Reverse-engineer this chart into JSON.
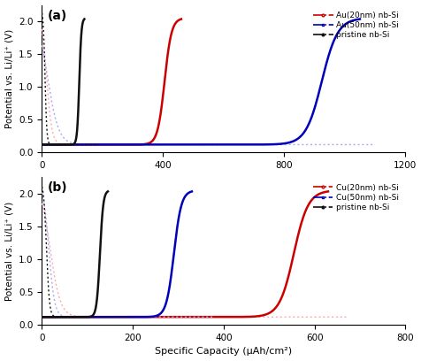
{
  "fig_title_a": "(a)",
  "fig_title_b": "(b)",
  "xlabel": "Specific Capacity (μAh/cm²)",
  "ylabel": "Potential vs. Li/Li⁺ (V)",
  "xlim_a": [
    0,
    1200
  ],
  "xlim_b": [
    0,
    800
  ],
  "ylim": [
    0,
    2.25
  ],
  "yticks": [
    0.0,
    0.5,
    1.0,
    1.5,
    2.0
  ],
  "xticks_a": [
    0,
    400,
    800,
    1200
  ],
  "xticks_b": [
    0,
    200,
    400,
    600,
    800
  ],
  "legend_a": [
    "Au(20nm) nb-Si",
    "Au(50nm) nb-Si",
    "pristine nb-Si"
  ],
  "legend_b": [
    "Cu(20nm) nb-Si",
    "Cu(50nm) nb-Si",
    "pristine nb-Si"
  ],
  "colors": {
    "red_dark": "#cc0000",
    "red_light": "#ffaaaa",
    "blue_dark": "#0000bb",
    "blue_light": "#aaaaee",
    "black_dark": "#111111"
  },
  "panel_a": {
    "pristine_disch_xmax": 180,
    "pristine_chg_xmax": 140,
    "au20_disch_xmax": 530,
    "au20_chg_xmax": 460,
    "au50_disch_xmax": 1100,
    "au50_chg_xmax": 1050
  },
  "panel_b": {
    "pristine_disch_xmax": 195,
    "pristine_chg_xmax": 145,
    "cu20_disch_xmax": 670,
    "cu20_chg_xmax": 630,
    "cu50_disch_xmax": 380,
    "cu50_chg_xmax": 330
  }
}
